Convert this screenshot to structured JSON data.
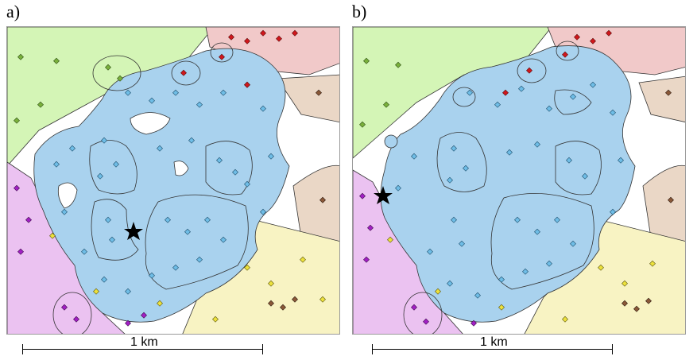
{
  "panels": [
    {
      "letter": "a)",
      "scale_label": "1 km"
    },
    {
      "letter": "b)",
      "scale_label": "1 km"
    }
  ],
  "legend_colors": {
    "cluster_blue": "#a9d2ee",
    "point_blue": "#6fbde6",
    "zone_green": "#d4f5b6",
    "point_green": "#7ab03c",
    "zone_red": "#f1c9c9",
    "point_red": "#d0171c",
    "zone_purple": "#ebc2f1",
    "point_purple": "#a21fc4",
    "zone_yellow": "#f8f3c3",
    "point_yellow": "#ece13c",
    "zone_brown": "#ead7c6",
    "point_brown": "#8a5838",
    "marker": "#000000"
  },
  "marker_icon": "star-icon"
}
